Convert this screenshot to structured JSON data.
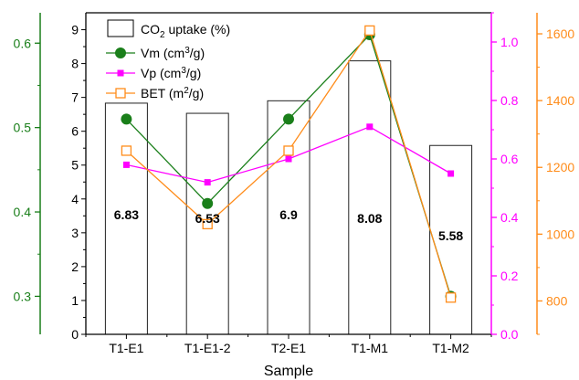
{
  "chart_data": {
    "type": "bar",
    "xlabel": "Sample",
    "categories": [
      "T1-E1",
      "T1-E1-2",
      "T2-E1",
      "T1-M1",
      "T1-M2"
    ],
    "bar_series": {
      "name": "CO₂ uptake (%)",
      "legend_main": "CO",
      "legend_sub": "2",
      "legend_rest": " uptake (%)",
      "values": [
        6.83,
        6.53,
        6.9,
        8.08,
        5.58
      ],
      "data_labels": [
        "6.83",
        "6.53",
        "6.9",
        "8.08",
        "5.58"
      ],
      "ylim": [
        0,
        9.5
      ],
      "ticks": [
        "0",
        "1",
        "2",
        "3",
        "4",
        "5",
        "6",
        "7",
        "8",
        "9"
      ]
    },
    "line_series": [
      {
        "name": "Vm (cm³/g)",
        "legend_main": "Vm (cm",
        "legend_sup": "3",
        "legend_rest": "/g)",
        "axis": "Vm",
        "values": [
          0.51,
          0.41,
          0.51,
          0.61,
          0.3
        ],
        "color": "#1a7f1a",
        "marker": "circle-filled"
      },
      {
        "name": "Vp (cm³/g)",
        "legend_main": "Vp (cm",
        "legend_sup": "3",
        "legend_rest": "/g)",
        "axis": "Vp",
        "values": [
          0.58,
          0.52,
          0.6,
          0.71,
          0.55
        ],
        "color": "#ff00ff",
        "marker": "square-filled"
      },
      {
        "name": "BET (m²/g)",
        "legend_main": "BET (m",
        "legend_sup": "2",
        "legend_rest": "/g)",
        "axis": "BET",
        "values": [
          1250,
          1030,
          1250,
          1610,
          810
        ],
        "color": "#ff8c1a",
        "marker": "square-open"
      }
    ],
    "axes": {
      "Vm": {
        "ylim": [
          0.255,
          0.636
        ],
        "ticks": [
          "0.3",
          "0.4",
          "0.5",
          "0.6"
        ],
        "color": "#1a7f1a"
      },
      "Vp": {
        "ylim": [
          0,
          1.1
        ],
        "ticks": [
          "0.0",
          "0.2",
          "0.4",
          "0.6",
          "0.8",
          "1.0"
        ],
        "color": "#ff00ff"
      },
      "BET": {
        "ylim": [
          700,
          1663
        ],
        "ticks": [
          "800",
          "1000",
          "1200",
          "1400",
          "1600"
        ],
        "color": "#ff8c1a"
      }
    },
    "legend_position": "top-left",
    "grid": false
  }
}
